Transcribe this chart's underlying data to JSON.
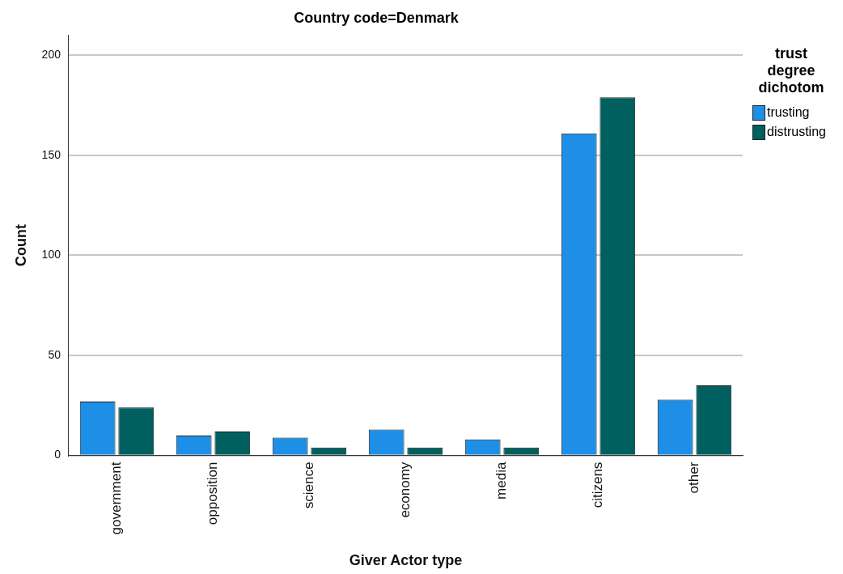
{
  "chart_data": {
    "type": "bar",
    "title": "Country code=Denmark",
    "xlabel": "Giver Actor type",
    "ylabel": "Count",
    "legend_title": "trust degree dichotom",
    "categories": [
      "government",
      "opposition",
      "science",
      "economy",
      "media",
      "citizens",
      "other"
    ],
    "series": [
      {
        "name": "trusting",
        "color": "#1e8fe6",
        "values": [
          27,
          10,
          9,
          13,
          8,
          161,
          28
        ]
      },
      {
        "name": "distrusting",
        "color": "#005f5f",
        "values": [
          24,
          12,
          4,
          4,
          4,
          179,
          35
        ]
      }
    ],
    "ylim": [
      0,
      210
    ],
    "yticks": [
      0,
      50,
      100,
      150,
      200
    ],
    "grid": "y",
    "legend": "top right"
  }
}
